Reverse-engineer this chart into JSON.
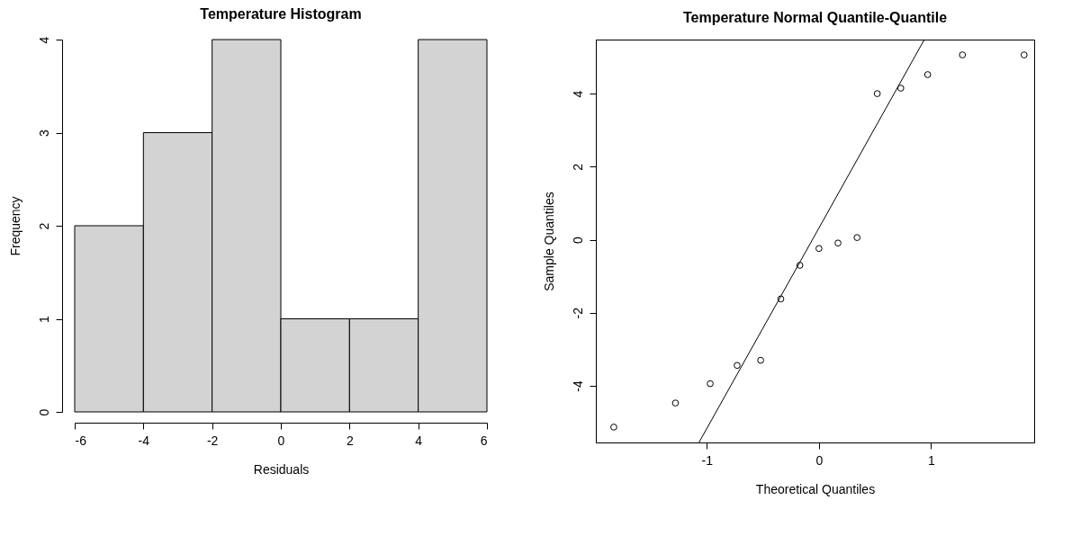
{
  "chart_data": [
    {
      "type": "histogram",
      "title": "Temperature Histogram",
      "xlabel": "Residuals",
      "ylabel": "Frequency",
      "bins": [
        -6,
        -4,
        -2,
        0,
        2,
        4,
        6
      ],
      "values": [
        2,
        3,
        4,
        1,
        1,
        4
      ],
      "color": "#d3d3d3",
      "xlim": [
        -6,
        6
      ],
      "ylim": [
        0,
        4
      ],
      "xticks": [
        -6,
        -4,
        -2,
        0,
        2,
        4,
        6
      ],
      "yticks": [
        0,
        1,
        2,
        3,
        4
      ],
      "grid": false
    },
    {
      "type": "scatter",
      "title": "Temperature Normal Quantile-Quantile",
      "xlabel": "Theoretical Quantiles",
      "ylabel": "Sample Quantiles",
      "series": [
        {
          "type": "scatter",
          "color": "#000000",
          "marker": "circle",
          "x": [
            -1.83,
            -1.28,
            -0.97,
            -0.73,
            -0.52,
            -0.34,
            -0.17,
            0,
            0.17,
            0.34,
            0.52,
            0.73,
            0.97,
            1.28,
            1.83
          ],
          "values": [
            -5.13,
            -4.47,
            -3.94,
            -3.44,
            -3.3,
            -1.62,
            -0.7,
            -0.24,
            -0.09,
            0.06,
            4.0,
            4.15,
            4.52,
            5.06,
            5.06
          ]
        },
        {
          "type": "line",
          "color": "#000000",
          "x": [
            -1.07,
            0.94
          ],
          "values": [
            -5.55,
            5.48
          ]
        }
      ],
      "xlim": [
        -1.99,
        1.92
      ],
      "ylim": [
        -5.55,
        5.48
      ],
      "xticks": [
        -1,
        0,
        1
      ],
      "yticks": [
        -4,
        -2,
        0,
        2,
        4
      ],
      "grid": false
    }
  ]
}
